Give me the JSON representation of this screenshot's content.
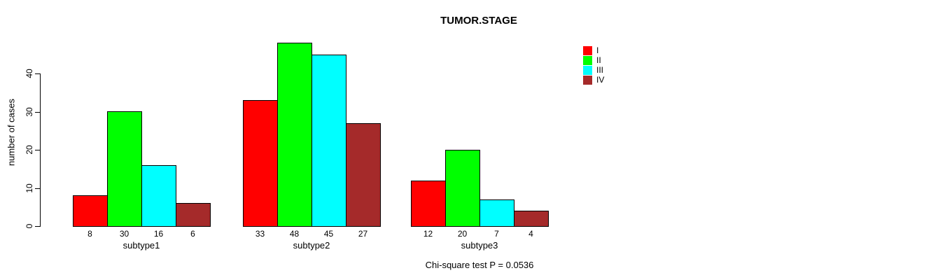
{
  "chart_data": {
    "type": "bar",
    "title": "TUMOR.STAGE",
    "xlabel": "",
    "ylabel": "number of cases",
    "ylim": [
      0,
      48
    ],
    "yticks": [
      0,
      10,
      20,
      30,
      40
    ],
    "grid": false,
    "legend_position": "top-right",
    "bar_values_shown_below_axis": true,
    "categories": [
      "subtype1",
      "subtype2",
      "subtype3"
    ],
    "series": [
      {
        "name": "I",
        "color": "#FF0000",
        "values": [
          8,
          33,
          12
        ]
      },
      {
        "name": "II",
        "color": "#00FF00",
        "values": [
          30,
          48,
          20
        ]
      },
      {
        "name": "III",
        "color": "#00FFFF",
        "values": [
          16,
          45,
          7
        ]
      },
      {
        "name": "IV",
        "color": "#A52A2A",
        "values": [
          6,
          27,
          4
        ]
      }
    ],
    "annotation": "Chi-square test P = 0.0536",
    "axis_color": "#000000",
    "bar_border_color": "#000000",
    "background_color": "#FFFFFF"
  }
}
